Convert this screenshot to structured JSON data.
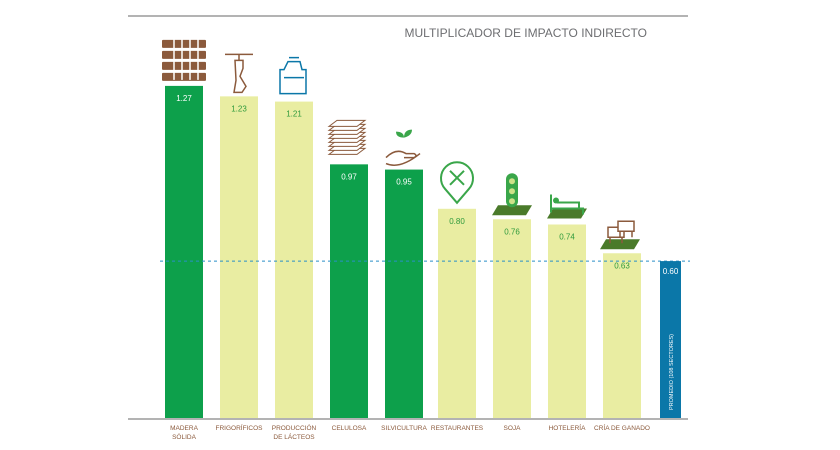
{
  "chart_data": {
    "type": "bar",
    "title": "MULTIPLICADOR DE IMPACTO INDIRECTO",
    "categories": [
      [
        "MADERA",
        "SÓLIDA"
      ],
      [
        "FRIGORÍFICOS"
      ],
      [
        "PRODUCCIÓN",
        "DE LÁCTEOS"
      ],
      [
        "CELULOSA"
      ],
      [
        "SILVICULTURA"
      ],
      [
        "RESTAURANTES"
      ],
      [
        "SOJA"
      ],
      [
        "HOTELERÍA"
      ],
      [
        "CRÍA DE GANADO"
      ]
    ],
    "values": [
      1.27,
      1.23,
      1.21,
      0.97,
      0.95,
      0.8,
      0.76,
      0.74,
      0.63
    ],
    "value_labels": [
      "1.27",
      "1.23",
      "1.21",
      "0.97",
      "0.95",
      "0.80",
      "0.76",
      "0.74",
      "0.63"
    ],
    "highlight": [
      true,
      false,
      false,
      true,
      true,
      false,
      false,
      false,
      false
    ],
    "icons": [
      "wood-pallet-icon",
      "meat-hook-icon",
      "milk-can-icon",
      "paper-stack-icon",
      "seedling-hand-icon",
      "restaurant-pin-icon",
      "soybean-icon",
      "hotel-bed-icon",
      "cattle-icon"
    ],
    "average": {
      "label": "PROMEDIO (108 SECTORES)",
      "value": 0.6,
      "value_label": "0.60"
    },
    "ylim": [
      0,
      1.3
    ],
    "colors": {
      "highlight": "#0da04b",
      "normal": "#e9eda2",
      "average": "#0b77a8",
      "text": "#8b5a3c",
      "dash": "#2a8fc7"
    }
  }
}
